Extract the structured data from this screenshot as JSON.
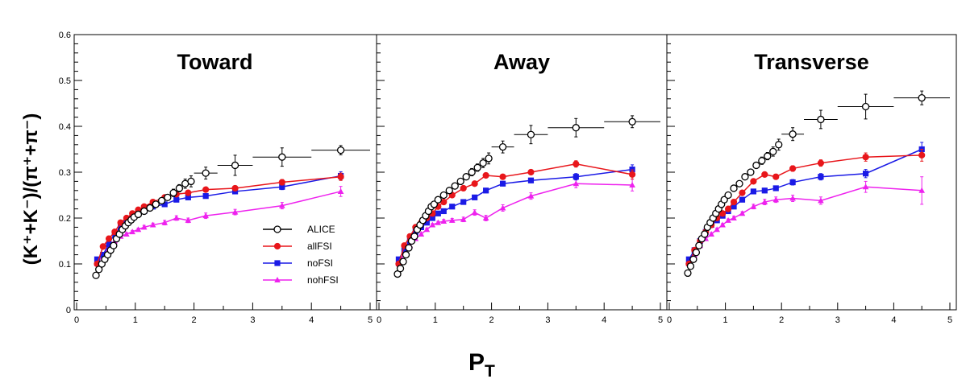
{
  "chart_data": {
    "type": "scatter",
    "ylabel": "(K⁺+K⁻)/(π⁺+π⁻)",
    "xlabel": "P_T",
    "xlabel_main": "P",
    "xlabel_sub": "T",
    "ylim": [
      0,
      0.6
    ],
    "xlim": [
      0,
      5
    ],
    "y_ticks": [
      0,
      0.1,
      0.2,
      0.3,
      0.4,
      0.5,
      0.6
    ],
    "y_tick_labels": [
      "0",
      "0.1",
      "0.2",
      "0.3",
      "0.4",
      "0.5",
      "0.6"
    ],
    "x_ticks": [
      0,
      1,
      2,
      3,
      4,
      5
    ],
    "x_tick_labels": [
      "0",
      "1",
      "2",
      "3",
      "4",
      "5"
    ],
    "grid": false,
    "legend_position": "bottom-right of first panel",
    "legend": [
      {
        "label": "ALICE",
        "color": "#000000",
        "marker": "open-circle"
      },
      {
        "label": "allFSI",
        "color": "#e8161b",
        "marker": "filled-circle"
      },
      {
        "label": "noFSI",
        "color": "#1a1ae6",
        "marker": "filled-square"
      },
      {
        "label": "nohFSI",
        "color": "#ee22ee",
        "marker": "filled-triangle"
      }
    ],
    "panels": [
      {
        "title": "Toward",
        "series": [
          {
            "name": "ALICE",
            "x": [
              0.33,
              0.38,
              0.43,
              0.48,
              0.53,
              0.58,
              0.63,
              0.68,
              0.73,
              0.78,
              0.83,
              0.88,
              0.93,
              0.98,
              1.05,
              1.15,
              1.25,
              1.35,
              1.45,
              1.55,
              1.65,
              1.75,
              1.85,
              1.95,
              2.2,
              2.7,
              3.5,
              4.5
            ],
            "y": [
              0.075,
              0.088,
              0.1,
              0.11,
              0.12,
              0.13,
              0.14,
              0.155,
              0.165,
              0.175,
              0.183,
              0.19,
              0.196,
              0.202,
              0.208,
              0.215,
              0.222,
              0.23,
              0.238,
              0.245,
              0.255,
              0.265,
              0.275,
              0.28,
              0.298,
              0.315,
              0.333,
              0.348
            ],
            "yerr": [
              0.004,
              0.004,
              0.004,
              0.004,
              0.004,
              0.004,
              0.004,
              0.004,
              0.004,
              0.004,
              0.004,
              0.004,
              0.004,
              0.004,
              0.005,
              0.005,
              0.005,
              0.006,
              0.006,
              0.006,
              0.008,
              0.008,
              0.01,
              0.012,
              0.013,
              0.022,
              0.02,
              0.01
            ],
            "xerr": [
              0,
              0,
              0,
              0,
              0,
              0,
              0,
              0,
              0,
              0,
              0,
              0,
              0,
              0,
              0,
              0,
              0,
              0,
              0,
              0,
              0,
              0,
              0,
              0,
              0.2,
              0.3,
              0.5,
              0.5
            ]
          },
          {
            "name": "allFSI",
            "x": [
              0.35,
              0.45,
              0.55,
              0.65,
              0.75,
              0.85,
              0.95,
              1.05,
              1.15,
              1.3,
              1.5,
              1.7,
              1.9,
              2.2,
              2.7,
              3.5,
              4.5
            ],
            "y": [
              0.1,
              0.138,
              0.155,
              0.17,
              0.19,
              0.2,
              0.21,
              0.218,
              0.225,
              0.235,
              0.245,
              0.252,
              0.255,
              0.262,
              0.265,
              0.278,
              0.29
            ],
            "yerr": [
              0.003,
              0.003,
              0.003,
              0.003,
              0.003,
              0.003,
              0.003,
              0.003,
              0.003,
              0.004,
              0.004,
              0.004,
              0.005,
              0.005,
              0.005,
              0.006,
              0.008
            ]
          },
          {
            "name": "noFSI",
            "x": [
              0.35,
              0.45,
              0.55,
              0.65,
              0.75,
              0.85,
              0.95,
              1.05,
              1.15,
              1.3,
              1.5,
              1.7,
              1.9,
              2.2,
              2.7,
              3.5,
              4.5
            ],
            "y": [
              0.11,
              0.12,
              0.143,
              0.167,
              0.18,
              0.19,
              0.2,
              0.21,
              0.215,
              0.225,
              0.23,
              0.24,
              0.245,
              0.248,
              0.258,
              0.268,
              0.292
            ],
            "yerr": [
              0.003,
              0.003,
              0.003,
              0.003,
              0.003,
              0.003,
              0.003,
              0.003,
              0.003,
              0.004,
              0.004,
              0.004,
              0.005,
              0.005,
              0.005,
              0.006,
              0.009
            ]
          },
          {
            "name": "nohFSI",
            "x": [
              0.35,
              0.45,
              0.55,
              0.65,
              0.75,
              0.85,
              0.95,
              1.05,
              1.15,
              1.3,
              1.5,
              1.7,
              1.9,
              2.2,
              2.7,
              3.5,
              4.5
            ],
            "y": [
              0.1,
              0.12,
              0.135,
              0.15,
              0.16,
              0.165,
              0.17,
              0.175,
              0.18,
              0.185,
              0.19,
              0.2,
              0.195,
              0.205,
              0.213,
              0.227,
              0.258
            ],
            "yerr": [
              0.003,
              0.003,
              0.003,
              0.003,
              0.003,
              0.003,
              0.003,
              0.003,
              0.004,
              0.004,
              0.005,
              0.005,
              0.005,
              0.006,
              0.006,
              0.007,
              0.011
            ]
          }
        ]
      },
      {
        "title": "Away",
        "series": [
          {
            "name": "ALICE",
            "x": [
              0.33,
              0.38,
              0.43,
              0.48,
              0.53,
              0.58,
              0.63,
              0.68,
              0.73,
              0.78,
              0.83,
              0.88,
              0.93,
              0.98,
              1.05,
              1.15,
              1.25,
              1.35,
              1.45,
              1.55,
              1.65,
              1.75,
              1.85,
              1.95,
              2.2,
              2.7,
              3.5,
              4.5
            ],
            "y": [
              0.078,
              0.09,
              0.105,
              0.12,
              0.135,
              0.15,
              0.16,
              0.175,
              0.185,
              0.195,
              0.205,
              0.215,
              0.225,
              0.23,
              0.24,
              0.25,
              0.26,
              0.27,
              0.28,
              0.29,
              0.3,
              0.31,
              0.32,
              0.33,
              0.355,
              0.382,
              0.397,
              0.41
            ],
            "yerr": [
              0.004,
              0.004,
              0.004,
              0.004,
              0.004,
              0.004,
              0.004,
              0.004,
              0.004,
              0.004,
              0.004,
              0.004,
              0.004,
              0.004,
              0.005,
              0.005,
              0.005,
              0.006,
              0.006,
              0.006,
              0.008,
              0.008,
              0.01,
              0.012,
              0.013,
              0.02,
              0.02,
              0.013
            ],
            "xerr": [
              0,
              0,
              0,
              0,
              0,
              0,
              0,
              0,
              0,
              0,
              0,
              0,
              0,
              0,
              0,
              0,
              0,
              0,
              0,
              0,
              0,
              0,
              0,
              0,
              0.2,
              0.3,
              0.5,
              0.5
            ]
          },
          {
            "name": "allFSI",
            "x": [
              0.35,
              0.45,
              0.55,
              0.65,
              0.75,
              0.85,
              0.95,
              1.05,
              1.15,
              1.3,
              1.5,
              1.7,
              1.9,
              2.2,
              2.7,
              3.5,
              4.5
            ],
            "y": [
              0.1,
              0.14,
              0.16,
              0.18,
              0.19,
              0.2,
              0.21,
              0.225,
              0.235,
              0.25,
              0.265,
              0.275,
              0.293,
              0.29,
              0.3,
              0.318,
              0.295
            ],
            "yerr": [
              0.003,
              0.003,
              0.003,
              0.003,
              0.003,
              0.003,
              0.003,
              0.003,
              0.003,
              0.004,
              0.004,
              0.004,
              0.005,
              0.005,
              0.005,
              0.007,
              0.01
            ]
          },
          {
            "name": "noFSI",
            "x": [
              0.35,
              0.45,
              0.55,
              0.65,
              0.75,
              0.85,
              0.95,
              1.05,
              1.15,
              1.3,
              1.5,
              1.7,
              1.9,
              2.2,
              2.7,
              3.5,
              4.5
            ],
            "y": [
              0.11,
              0.13,
              0.15,
              0.17,
              0.18,
              0.19,
              0.2,
              0.21,
              0.215,
              0.225,
              0.235,
              0.245,
              0.26,
              0.275,
              0.282,
              0.29,
              0.306
            ],
            "yerr": [
              0.003,
              0.003,
              0.003,
              0.003,
              0.003,
              0.003,
              0.003,
              0.003,
              0.003,
              0.004,
              0.004,
              0.004,
              0.005,
              0.005,
              0.005,
              0.007,
              0.01
            ]
          },
          {
            "name": "nohFSI",
            "x": [
              0.35,
              0.45,
              0.55,
              0.65,
              0.75,
              0.85,
              0.95,
              1.05,
              1.15,
              1.3,
              1.5,
              1.7,
              1.9,
              2.2,
              2.7,
              3.5,
              4.5
            ],
            "y": [
              0.1,
              0.12,
              0.14,
              0.155,
              0.165,
              0.175,
              0.185,
              0.19,
              0.193,
              0.195,
              0.197,
              0.212,
              0.2,
              0.222,
              0.248,
              0.275,
              0.272
            ],
            "yerr": [
              0.003,
              0.003,
              0.003,
              0.003,
              0.003,
              0.003,
              0.003,
              0.003,
              0.004,
              0.004,
              0.005,
              0.006,
              0.006,
              0.007,
              0.007,
              0.009,
              0.013
            ]
          }
        ]
      },
      {
        "title": "Transverse",
        "series": [
          {
            "name": "ALICE",
            "x": [
              0.33,
              0.38,
              0.43,
              0.48,
              0.53,
              0.58,
              0.63,
              0.68,
              0.73,
              0.78,
              0.83,
              0.88,
              0.93,
              0.98,
              1.05,
              1.15,
              1.25,
              1.35,
              1.45,
              1.55,
              1.65,
              1.75,
              1.85,
              1.95,
              2.2,
              2.7,
              3.5,
              4.5
            ],
            "y": [
              0.08,
              0.095,
              0.11,
              0.125,
              0.14,
              0.155,
              0.165,
              0.18,
              0.19,
              0.2,
              0.21,
              0.22,
              0.23,
              0.24,
              0.25,
              0.265,
              0.275,
              0.29,
              0.3,
              0.315,
              0.325,
              0.335,
              0.345,
              0.36,
              0.383,
              0.415,
              0.443,
              0.462
            ],
            "yerr": [
              0.004,
              0.004,
              0.004,
              0.004,
              0.004,
              0.004,
              0.004,
              0.004,
              0.004,
              0.004,
              0.004,
              0.004,
              0.004,
              0.004,
              0.005,
              0.005,
              0.005,
              0.006,
              0.006,
              0.006,
              0.008,
              0.008,
              0.01,
              0.012,
              0.014,
              0.02,
              0.027,
              0.015
            ],
            "xerr": [
              0,
              0,
              0,
              0,
              0,
              0,
              0,
              0,
              0,
              0,
              0,
              0,
              0,
              0,
              0,
              0,
              0,
              0,
              0,
              0,
              0,
              0,
              0,
              0,
              0.2,
              0.3,
              0.5,
              0.5
            ]
          },
          {
            "name": "allFSI",
            "x": [
              0.35,
              0.45,
              0.55,
              0.65,
              0.75,
              0.85,
              0.95,
              1.05,
              1.15,
              1.3,
              1.5,
              1.7,
              1.9,
              2.2,
              2.7,
              3.5,
              4.5
            ],
            "y": [
              0.1,
              0.13,
              0.15,
              0.17,
              0.185,
              0.2,
              0.21,
              0.22,
              0.235,
              0.255,
              0.28,
              0.295,
              0.29,
              0.308,
              0.32,
              0.333,
              0.337
            ],
            "yerr": [
              0.003,
              0.003,
              0.003,
              0.003,
              0.003,
              0.003,
              0.003,
              0.003,
              0.003,
              0.004,
              0.004,
              0.005,
              0.005,
              0.006,
              0.007,
              0.009,
              0.013
            ]
          },
          {
            "name": "noFSI",
            "x": [
              0.35,
              0.45,
              0.55,
              0.65,
              0.75,
              0.85,
              0.95,
              1.05,
              1.15,
              1.3,
              1.5,
              1.7,
              1.9,
              2.2,
              2.7,
              3.5,
              4.5
            ],
            "y": [
              0.11,
              0.13,
              0.15,
              0.17,
              0.185,
              0.195,
              0.205,
              0.215,
              0.225,
              0.24,
              0.258,
              0.26,
              0.265,
              0.278,
              0.29,
              0.297,
              0.35
            ],
            "yerr": [
              0.003,
              0.003,
              0.003,
              0.003,
              0.003,
              0.003,
              0.003,
              0.003,
              0.003,
              0.004,
              0.004,
              0.005,
              0.005,
              0.006,
              0.007,
              0.009,
              0.015
            ]
          },
          {
            "name": "nohFSI",
            "x": [
              0.35,
              0.45,
              0.55,
              0.65,
              0.75,
              0.85,
              0.95,
              1.05,
              1.15,
              1.3,
              1.5,
              1.7,
              1.9,
              2.2,
              2.7,
              3.5,
              4.5
            ],
            "y": [
              0.1,
              0.12,
              0.14,
              0.155,
              0.165,
              0.175,
              0.185,
              0.195,
              0.2,
              0.21,
              0.225,
              0.235,
              0.24,
              0.243,
              0.238,
              0.268,
              0.26
            ],
            "yerr": [
              0.003,
              0.003,
              0.003,
              0.003,
              0.003,
              0.003,
              0.003,
              0.003,
              0.004,
              0.004,
              0.005,
              0.006,
              0.006,
              0.007,
              0.008,
              0.012,
              0.03
            ]
          }
        ]
      }
    ]
  }
}
